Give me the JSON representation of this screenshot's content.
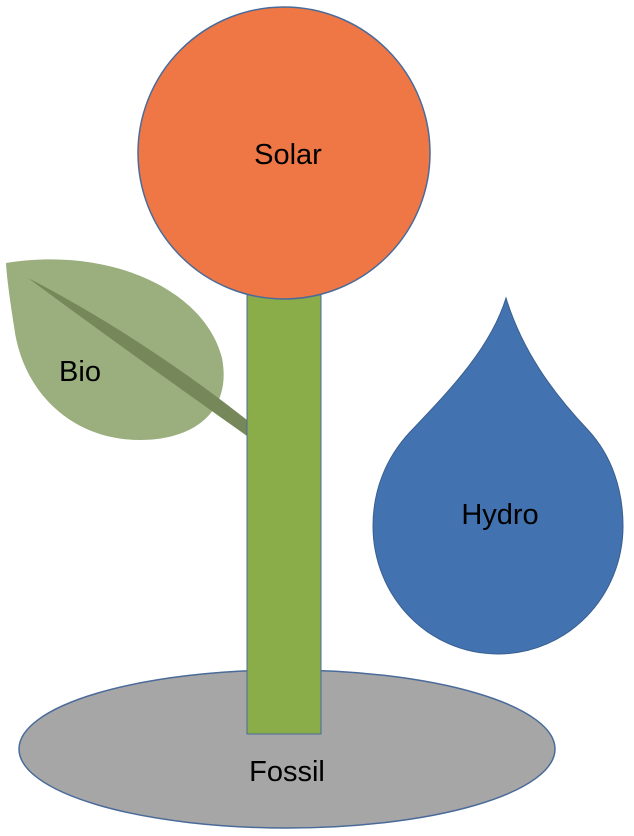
{
  "diagram": {
    "labels": {
      "solar": "Solar",
      "bio": "Bio",
      "hydro": "Hydro",
      "fossil": "Fossil"
    },
    "colors": {
      "solar": "#EE7745",
      "stem": "#8AAD4A",
      "leaf": "#9AAE7E",
      "leaf_vein": "#76885A",
      "hydro": "#4272AF",
      "fossil": "#A6A6A6",
      "outline": "#4A6B9A"
    }
  }
}
